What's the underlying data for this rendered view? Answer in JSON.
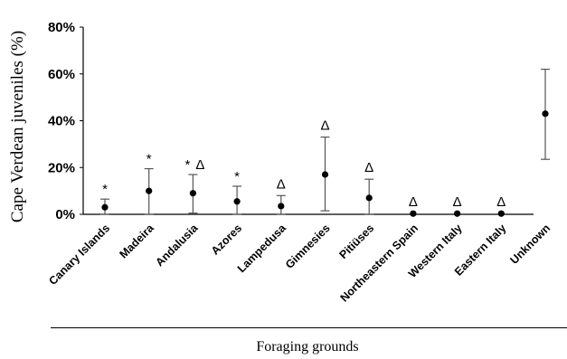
{
  "chart_data": {
    "type": "scatter",
    "ylabel": "Cape Verdean juveniles (%)",
    "xlabel": "Foraging grounds",
    "ylim": [
      0,
      80
    ],
    "y_ticks": [
      "0%",
      "20%",
      "40%",
      "60%",
      "80%"
    ],
    "y_tick_values": [
      0,
      20,
      40,
      60,
      80
    ],
    "categories": [
      "Canary Islands",
      "Madeira",
      "Andalusia",
      "Azores",
      "Lampedusa",
      "Gimnesies",
      "Pitiüses",
      "Northeastern Spain",
      "Western Italy",
      "Eastern Italy",
      "Unknown"
    ],
    "values": [
      3,
      10,
      9,
      5.5,
      3.5,
      17,
      7,
      0.3,
      0.3,
      0.3,
      43
    ],
    "lower": [
      0,
      0,
      0.5,
      0,
      0,
      1.5,
      0,
      0,
      0,
      0,
      23.5
    ],
    "upper": [
      6.5,
      19.5,
      17,
      12,
      8,
      33,
      15,
      0.3,
      0.3,
      0.3,
      62
    ],
    "significance_markers": [
      {
        "category": "Canary Islands",
        "star": "*",
        "triangle": ""
      },
      {
        "category": "Madeira",
        "star": "*",
        "triangle": ""
      },
      {
        "category": "Andalusia",
        "star": "*",
        "triangle": "Δ"
      },
      {
        "category": "Azores",
        "star": "*",
        "triangle": ""
      },
      {
        "category": "Lampedusa",
        "star": "",
        "triangle": "Δ"
      },
      {
        "category": "Gimnesies",
        "star": "",
        "triangle": "Δ"
      },
      {
        "category": "Pitiüses",
        "star": "",
        "triangle": "Δ"
      },
      {
        "category": "Northeastern Spain",
        "star": "",
        "triangle": "Δ"
      },
      {
        "category": "Western Italy",
        "star": "",
        "triangle": "Δ"
      },
      {
        "category": "Eastern Italy",
        "star": "",
        "triangle": "Δ"
      },
      {
        "category": "Unknown",
        "star": "",
        "triangle": ""
      }
    ],
    "grid": false,
    "colors": {
      "point": "#000000",
      "error_bar": "#555555",
      "axis": "#000000"
    }
  }
}
